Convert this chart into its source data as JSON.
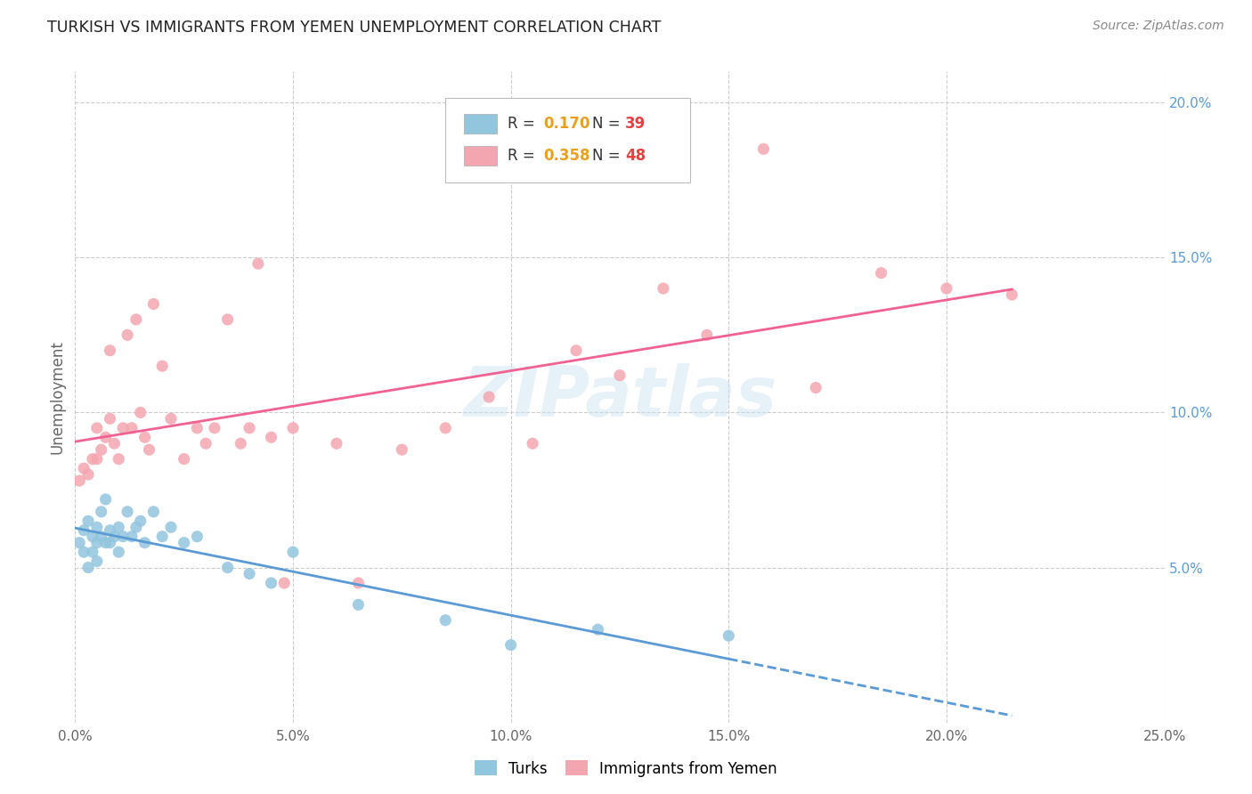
{
  "title": "TURKISH VS IMMIGRANTS FROM YEMEN UNEMPLOYMENT CORRELATION CHART",
  "source": "Source: ZipAtlas.com",
  "ylabel": "Unemployment",
  "watermark": "ZIPatlas",
  "xlim": [
    0.0,
    0.25
  ],
  "ylim": [
    0.0,
    0.21
  ],
  "xticks": [
    0.0,
    0.05,
    0.1,
    0.15,
    0.2,
    0.25
  ],
  "yticks_right": [
    0.05,
    0.1,
    0.15,
    0.2
  ],
  "ytick_labels_right": [
    "5.0%",
    "10.0%",
    "15.0%",
    "20.0%"
  ],
  "xtick_labels": [
    "0.0%",
    "5.0%",
    "10.0%",
    "15.0%",
    "20.0%",
    "25.0%"
  ],
  "blue_color": "#92c5de",
  "pink_color": "#f4a6b0",
  "blue_line_color": "#5b9bd5",
  "pink_line_color": "#f06292",
  "turks_x": [
    0.001,
    0.002,
    0.002,
    0.003,
    0.003,
    0.004,
    0.004,
    0.005,
    0.005,
    0.005,
    0.006,
    0.006,
    0.007,
    0.007,
    0.008,
    0.008,
    0.009,
    0.01,
    0.01,
    0.011,
    0.012,
    0.013,
    0.014,
    0.015,
    0.016,
    0.018,
    0.02,
    0.022,
    0.025,
    0.028,
    0.035,
    0.04,
    0.045,
    0.05,
    0.065,
    0.085,
    0.1,
    0.12,
    0.15
  ],
  "turks_y": [
    0.058,
    0.055,
    0.062,
    0.05,
    0.065,
    0.06,
    0.055,
    0.058,
    0.063,
    0.052,
    0.06,
    0.068,
    0.058,
    0.072,
    0.062,
    0.058,
    0.06,
    0.055,
    0.063,
    0.06,
    0.068,
    0.06,
    0.063,
    0.065,
    0.058,
    0.068,
    0.06,
    0.063,
    0.058,
    0.06,
    0.05,
    0.048,
    0.045,
    0.055,
    0.038,
    0.033,
    0.025,
    0.03,
    0.028
  ],
  "yemen_x": [
    0.001,
    0.002,
    0.003,
    0.004,
    0.005,
    0.005,
    0.006,
    0.007,
    0.008,
    0.008,
    0.009,
    0.01,
    0.011,
    0.012,
    0.013,
    0.014,
    0.015,
    0.016,
    0.017,
    0.018,
    0.02,
    0.022,
    0.025,
    0.028,
    0.03,
    0.032,
    0.035,
    0.038,
    0.04,
    0.042,
    0.045,
    0.048,
    0.05,
    0.06,
    0.065,
    0.075,
    0.085,
    0.095,
    0.105,
    0.115,
    0.125,
    0.135,
    0.145,
    0.158,
    0.17,
    0.185,
    0.2,
    0.215
  ],
  "yemen_y": [
    0.078,
    0.082,
    0.08,
    0.085,
    0.085,
    0.095,
    0.088,
    0.092,
    0.12,
    0.098,
    0.09,
    0.085,
    0.095,
    0.125,
    0.095,
    0.13,
    0.1,
    0.092,
    0.088,
    0.135,
    0.115,
    0.098,
    0.085,
    0.095,
    0.09,
    0.095,
    0.13,
    0.09,
    0.095,
    0.148,
    0.092,
    0.045,
    0.095,
    0.09,
    0.045,
    0.088,
    0.095,
    0.105,
    0.09,
    0.12,
    0.112,
    0.14,
    0.125,
    0.185,
    0.108,
    0.145,
    0.14,
    0.138
  ]
}
